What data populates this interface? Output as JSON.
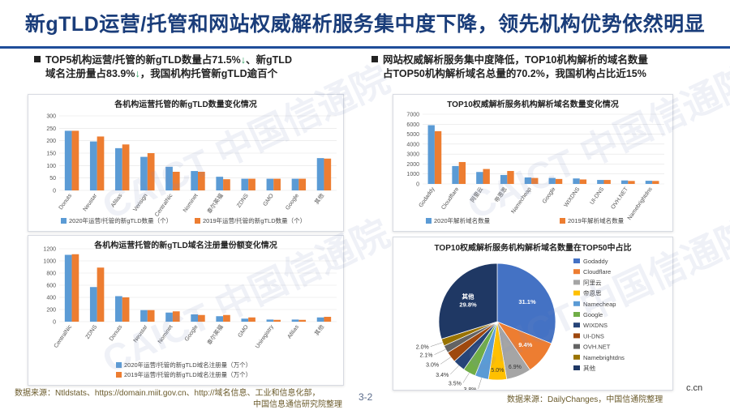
{
  "header": {
    "title": "新gTLD运营/托管和网站权威解析服务集中度下降，领先机构优势依然明显"
  },
  "bullets": {
    "left": {
      "line1_a": "TOP5机构运营/托管的新gTLD数量占71.5%",
      "line1_arrow": "↓",
      "line1_b": "、新gTLD",
      "line2_a": "域名注册量占83.9%",
      "line2_arrow": "↓",
      "line2_b": "，我国机构托管新gTLD逾百个"
    },
    "right": {
      "line1": "网站权威解析服务集中度降低，TOP10机构解析的域名数量",
      "line2": "占TOP50机构解析域名总量的70.2%，我国机构占比近15%"
    }
  },
  "watermark": {
    "text_cn": "中国信通院",
    "text_en": "CAICT"
  },
  "colors": {
    "series_2020": "#5b9bd5",
    "series_2019": "#ed7d31",
    "pie": [
      "#4472c4",
      "#ed7d31",
      "#a5a5a5",
      "#ffc000",
      "#5b9bd5",
      "#70ad47",
      "#264478",
      "#9e480e",
      "#636363",
      "#997300",
      "#1f3864"
    ]
  },
  "chart_data": [
    {
      "type": "bar",
      "title": "各机构运营托管的新gTLD数量变化情况",
      "categories": [
        "Donuts",
        "Neustar",
        "Afilias",
        "Verisign",
        "CentralNic",
        "Nominet",
        "泰尔英福",
        "ZDNS",
        "GMO",
        "Google",
        "其他"
      ],
      "series": [
        {
          "name": "2020年运营/托管的新gTLD数量（个）",
          "values": [
            240,
            197,
            170,
            135,
            95,
            78,
            55,
            47,
            47,
            47,
            130
          ]
        },
        {
          "name": "2019年运营/托管的新gTLD数量（个）",
          "values": [
            240,
            217,
            185,
            150,
            75,
            75,
            45,
            47,
            47,
            47,
            128
          ]
        }
      ],
      "ylim": [
        0,
        300
      ],
      "yticks": [
        "0",
        "50",
        "100",
        "150",
        "200",
        "250",
        "300"
      ],
      "legend": "bottom"
    },
    {
      "type": "bar",
      "title": "各机构运营托管的新gTLD域名注册量份额变化情况",
      "categories": [
        "CentralNic",
        "ZDNS",
        "Donuts",
        "Neustar",
        "Nominet",
        "Google",
        "泰尔英福",
        "GMO",
        "Uniregistry",
        "Afilias",
        "其他"
      ],
      "series": [
        {
          "name": "2020年运营/托管的新gTLD域名注册量（万个）",
          "values": [
            1100,
            570,
            420,
            190,
            150,
            120,
            90,
            50,
            35,
            35,
            70
          ]
        },
        {
          "name": "2019年运营/托管的新gTLD域名注册量（万个）",
          "values": [
            1110,
            890,
            400,
            190,
            170,
            110,
            110,
            70,
            30,
            30,
            80
          ]
        }
      ],
      "ylim": [
        0,
        1200
      ],
      "yticks": [
        "0",
        "200",
        "400",
        "600",
        "800",
        "1000",
        "1200"
      ],
      "legend": "bottom"
    },
    {
      "type": "bar",
      "title": "TOP10权威解析服务机构解析域名数量变化情况",
      "categories": [
        "Godaddy",
        "Cloudflare",
        "阿里云",
        "帝恩思",
        "Namecheap",
        "Google",
        "WIXDNS",
        "UI-DNS",
        "OVH.NET",
        "Namebrightdns"
      ],
      "series": [
        {
          "name": "2020年解析域名数量",
          "values": [
            5900,
            1800,
            1200,
            900,
            650,
            600,
            550,
            400,
            350,
            320
          ]
        },
        {
          "name": "2019年解析域名数量",
          "values": [
            5300,
            2200,
            1500,
            1300,
            600,
            500,
            450,
            400,
            300,
            300
          ]
        }
      ],
      "ylim": [
        0,
        7000
      ],
      "yticks": [
        "0",
        "1000",
        "2000",
        "3000",
        "4000",
        "5000",
        "6000",
        "7000"
      ],
      "legend": "bottom"
    },
    {
      "type": "pie",
      "title": "TOP10权威解析服务机构解析域名数量在TOP50中占比",
      "labels": [
        "Godaddy",
        "Cloudflare",
        "阿里云",
        "帝恩思",
        "Namecheap",
        "Google",
        "WIXDNS",
        "UI-DNS",
        "OVH.NET",
        "Namebrightdns",
        "其他"
      ],
      "values": [
        31.1,
        9.4,
        6.9,
        5.0,
        3.8,
        3.5,
        3.4,
        3.0,
        2.1,
        2.0,
        29.8
      ],
      "value_labels": [
        "31.1%",
        "9.4%",
        "6.9%",
        "5.0%",
        "3.8%",
        "3.5%",
        "3.4%",
        "3.0%",
        "2.1%",
        "2.0%",
        "其他\n29.8%"
      ],
      "legend": "right"
    }
  ],
  "footer": {
    "left_line1": "数据来源：Ntldstats、https://domain.miit.gov.cn、http://域名信息、工业和信息化部，",
    "left_line2": "中国信息通信研究院整理",
    "page": "3-2",
    "right": "数据来源：DailyChanges，中国信通院整理",
    "corner": "c.cn"
  }
}
